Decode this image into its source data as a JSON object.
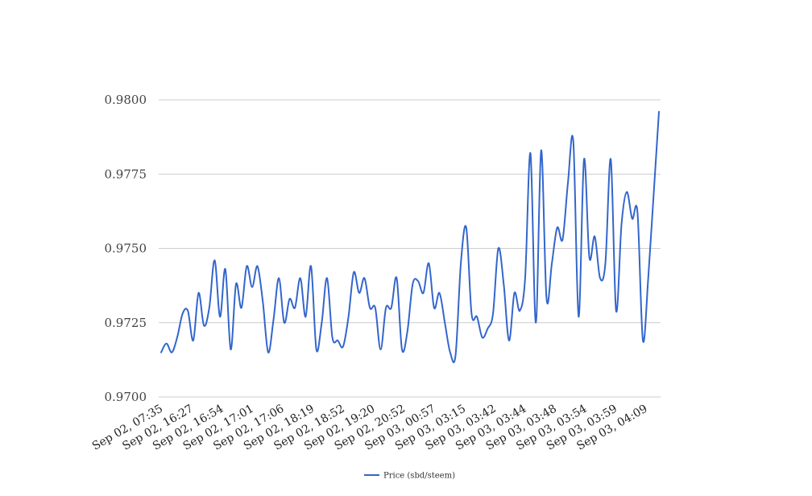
{
  "chart_data": {
    "type": "line",
    "title": "",
    "xlabel": "",
    "ylabel": "",
    "ylim": [
      0.97,
      0.98
    ],
    "yticks": [
      "0.9700",
      "0.9725",
      "0.9750",
      "0.9775",
      "0.9800"
    ],
    "ytick_values": [
      0.97,
      0.9725,
      0.975,
      0.9775,
      0.98
    ],
    "xtick_labels": [
      "Sep 02, 07:35",
      "Sep 02, 16:27",
      "Sep 02, 16:54",
      "Sep 02, 17:01",
      "Sep 02, 17:06",
      "Sep 02, 18:19",
      "Sep 02, 18:52",
      "Sep 02, 19:20",
      "Sep 02, 20:52",
      "Sep 03, 00:57",
      "Sep 03, 03:15",
      "Sep 03, 03:42",
      "Sep 03, 03:44",
      "Sep 03, 03:48",
      "Sep 03, 03:54",
      "Sep 03, 03:59",
      "Sep 03, 04:09"
    ],
    "grid": true,
    "legend_position": "bottom-center",
    "series": [
      {
        "name": "Price (sbd/steem)",
        "color": "#3366cc",
        "values": [
          0.9715,
          0.9718,
          0.9715,
          0.972,
          0.9728,
          0.9729,
          0.9719,
          0.9735,
          0.9724,
          0.973,
          0.9746,
          0.9727,
          0.9743,
          0.9716,
          0.9738,
          0.973,
          0.9744,
          0.9737,
          0.9744,
          0.9732,
          0.9715,
          0.9726,
          0.974,
          0.9725,
          0.9733,
          0.973,
          0.974,
          0.9727,
          0.9744,
          0.9716,
          0.9725,
          0.974,
          0.972,
          0.9719,
          0.9717,
          0.9727,
          0.9742,
          0.9735,
          0.974,
          0.973,
          0.973,
          0.9716,
          0.973,
          0.973,
          0.974,
          0.9716,
          0.9722,
          0.9738,
          0.9739,
          0.9735,
          0.9745,
          0.973,
          0.9735,
          0.9725,
          0.9715,
          0.9714,
          0.9745,
          0.9757,
          0.9728,
          0.9727,
          0.972,
          0.9723,
          0.9728,
          0.975,
          0.9738,
          0.9719,
          0.9735,
          0.9729,
          0.974,
          0.9782,
          0.9725,
          0.9783,
          0.9733,
          0.9745,
          0.9757,
          0.9753,
          0.9772,
          0.9786,
          0.9727,
          0.978,
          0.9747,
          0.9754,
          0.974,
          0.9745,
          0.978,
          0.9729,
          0.9758,
          0.9769,
          0.976,
          0.9762,
          0.9719,
          0.974,
          0.9768,
          0.9796
        ]
      }
    ]
  }
}
